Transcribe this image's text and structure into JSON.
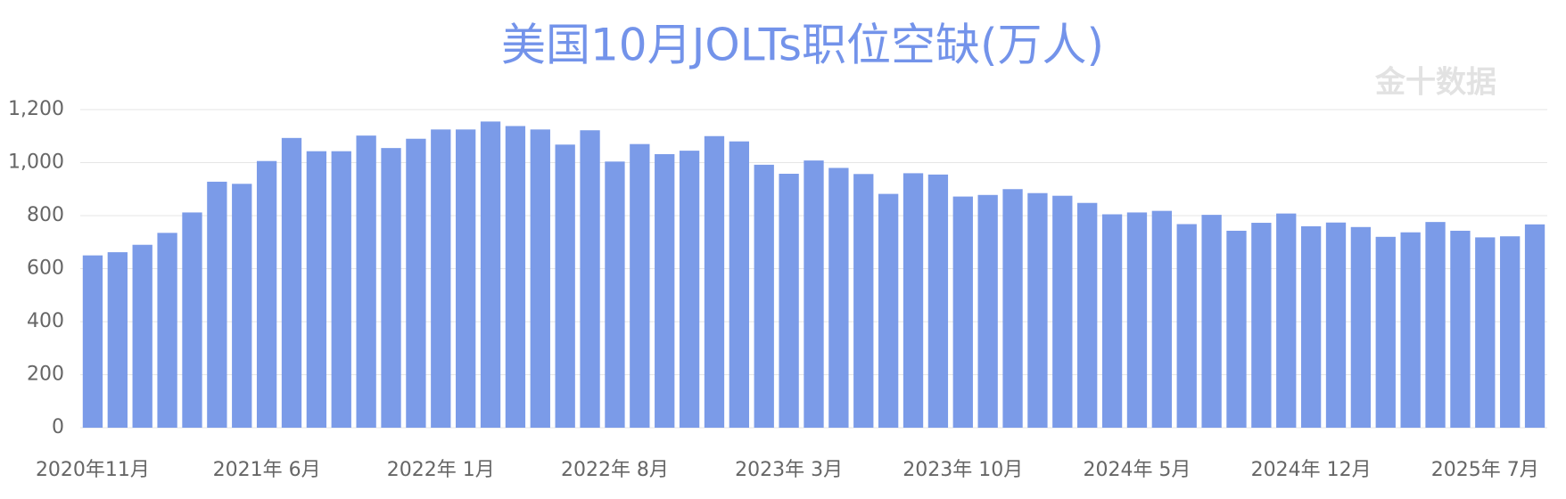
{
  "chart_data": {
    "type": "bar",
    "title": "美国10月JOLTs职位空缺(万人)",
    "watermark": "金十数据",
    "color": "#7b9be8",
    "categories": [
      "2020年11月",
      null,
      null,
      null,
      null,
      null,
      null,
      "2021年 6月",
      null,
      null,
      null,
      null,
      null,
      null,
      "2022年 1月",
      null,
      null,
      null,
      null,
      null,
      null,
      "2022年 8月",
      null,
      null,
      null,
      null,
      null,
      null,
      "2023年 3月",
      null,
      null,
      null,
      null,
      null,
      null,
      "2023年 10月",
      null,
      null,
      null,
      null,
      null,
      null,
      "2024年 5月",
      null,
      null,
      null,
      null,
      null,
      null,
      "2024年 12月",
      null,
      null,
      null,
      null,
      null,
      null,
      "2025年 7月",
      null,
      null
    ],
    "values": [
      650,
      662,
      690,
      735,
      812,
      928,
      920,
      1006,
      1093,
      1043,
      1043,
      1102,
      1055,
      1090,
      1125,
      1125,
      1155,
      1138,
      1125,
      1068,
      1122,
      1004,
      1070,
      1032,
      1045,
      1100,
      1080,
      992,
      958,
      1008,
      980,
      957,
      882,
      960,
      955,
      872,
      878,
      900,
      885,
      875,
      848,
      805,
      812,
      818,
      768,
      803,
      743,
      773,
      808,
      760,
      774,
      757,
      720,
      737,
      776,
      743,
      718,
      722,
      767
    ],
    "ylim": [
      0,
      1200
    ],
    "yticks": [
      0,
      200,
      400,
      600,
      800,
      {
        "value": 1000,
        "label": "1,000"
      },
      {
        "value": 1200,
        "label": "1,200"
      }
    ],
    "grid": true
  }
}
